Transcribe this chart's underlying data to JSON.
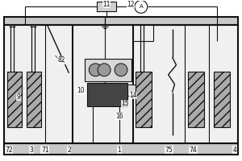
{
  "bg": "white",
  "lc": "#111111",
  "gray1": "#aaaaaa",
  "gray2": "#cccccc",
  "gray3": "#888888",
  "dark": "#333333",
  "figsize": [
    3.0,
    2.0
  ],
  "dpi": 100
}
